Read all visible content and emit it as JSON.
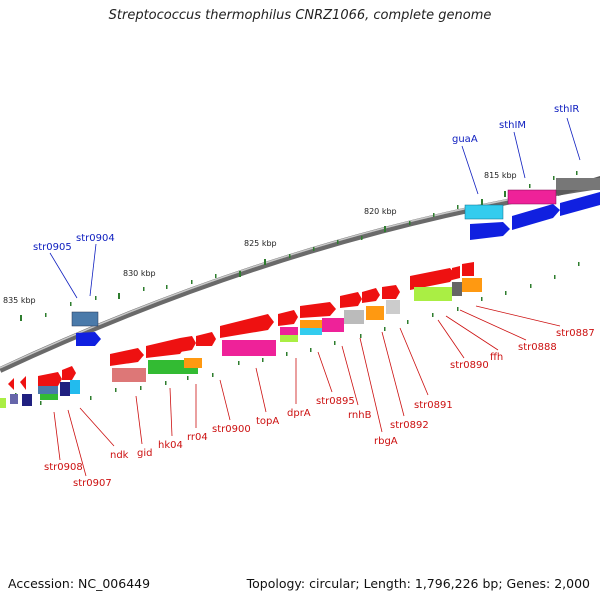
{
  "title": "Streptococcus thermophilus CNRZ1066, complete genome",
  "footer": {
    "accession": "Accession: NC_006449",
    "topology": "Topology: circular; Length: 1,796,226 bp; Genes: 2,000"
  },
  "scale_labels": [
    "815 kbp",
    "820 kbp",
    "825 kbp",
    "830 kbp",
    "835 kbp"
  ],
  "gene_labels": {
    "top": [
      "sthIR",
      "sthIM",
      "guaA",
      "str0904",
      "str0905"
    ],
    "bottom": [
      "str0887",
      "str0888",
      "ffh",
      "str0890",
      "str0891",
      "str0892",
      "rbgA",
      "rnhB",
      "str0895",
      "dprA",
      "topA",
      "str0900",
      "rr04",
      "hk04",
      "gid",
      "ndk",
      "str0907",
      "str0908"
    ]
  },
  "colors": {
    "backbone": "#7a7a7a",
    "tick": "#2e7d2e",
    "top_label": "#1020c0",
    "bottom_label": "#cc1010",
    "gene_red": "#ee1111",
    "gene_blue": "#1020e0",
    "gene_cyan": "#22bbee",
    "gene_magenta": "#ee2299",
    "gene_green": "#66cc22",
    "gene_orange": "#ff9911",
    "gene_gray": "#888888"
  }
}
